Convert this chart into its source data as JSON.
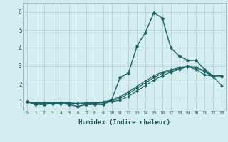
{
  "xlabel": "Humidex (Indice chaleur)",
  "bg_color": "#d4edf0",
  "grid_color": "#b8d0d4",
  "line_color": "#1a6060",
  "xlim": [
    -0.5,
    23.5
  ],
  "ylim": [
    0.5,
    6.5
  ],
  "yticks": [
    1,
    2,
    3,
    4,
    5,
    6
  ],
  "xticks": [
    0,
    1,
    2,
    3,
    4,
    5,
    6,
    7,
    8,
    9,
    10,
    11,
    12,
    13,
    14,
    15,
    16,
    17,
    18,
    19,
    20,
    21,
    22,
    23
  ],
  "series": [
    {
      "x": [
        0,
        1,
        2,
        3,
        4,
        5,
        6,
        7,
        8,
        9,
        10,
        11,
        12,
        13,
        14,
        15,
        16,
        17,
        18,
        19,
        20,
        21,
        22,
        23
      ],
      "y": [
        1.0,
        0.85,
        0.85,
        0.9,
        0.9,
        0.85,
        0.75,
        0.85,
        0.85,
        0.85,
        1.1,
        2.35,
        2.6,
        4.1,
        4.85,
        5.95,
        5.65,
        4.0,
        3.55,
        3.3,
        3.3,
        2.8,
        2.45,
        2.45
      ],
      "marker": "D",
      "markersize": 2.5,
      "linewidth": 1.0
    },
    {
      "x": [
        0,
        1,
        2,
        3,
        4,
        5,
        6,
        7,
        8,
        9,
        10,
        11,
        12,
        13,
        14,
        15,
        16,
        17,
        18,
        19,
        20,
        21,
        22,
        23
      ],
      "y": [
        1.0,
        0.9,
        0.9,
        0.9,
        0.95,
        0.9,
        0.9,
        0.9,
        0.9,
        0.95,
        1.0,
        1.1,
        1.3,
        1.6,
        1.9,
        2.2,
        2.45,
        2.65,
        2.8,
        2.95,
        2.8,
        2.5,
        2.42,
        1.9
      ],
      "marker": "D",
      "markersize": 2.0,
      "linewidth": 0.8
    },
    {
      "x": [
        0,
        1,
        2,
        3,
        4,
        5,
        6,
        7,
        8,
        9,
        10,
        11,
        12,
        13,
        14,
        15,
        16,
        17,
        18,
        19,
        20,
        21,
        22,
        23
      ],
      "y": [
        1.0,
        0.92,
        0.92,
        0.92,
        0.95,
        0.92,
        0.88,
        0.92,
        0.92,
        0.98,
        1.05,
        1.2,
        1.45,
        1.75,
        2.05,
        2.35,
        2.58,
        2.72,
        2.85,
        2.95,
        2.88,
        2.68,
        2.38,
        2.38
      ],
      "marker": "D",
      "markersize": 2.0,
      "linewidth": 0.8
    },
    {
      "x": [
        0,
        1,
        2,
        3,
        4,
        5,
        6,
        7,
        8,
        9,
        10,
        11,
        12,
        13,
        14,
        15,
        16,
        17,
        18,
        19,
        20,
        21,
        22,
        23
      ],
      "y": [
        1.0,
        0.95,
        0.95,
        0.95,
        0.98,
        0.95,
        0.92,
        0.95,
        0.95,
        1.0,
        1.1,
        1.28,
        1.55,
        1.85,
        2.15,
        2.45,
        2.65,
        2.78,
        2.9,
        2.98,
        2.92,
        2.72,
        2.4,
        2.38
      ],
      "marker": "D",
      "markersize": 2.0,
      "linewidth": 0.8
    }
  ]
}
